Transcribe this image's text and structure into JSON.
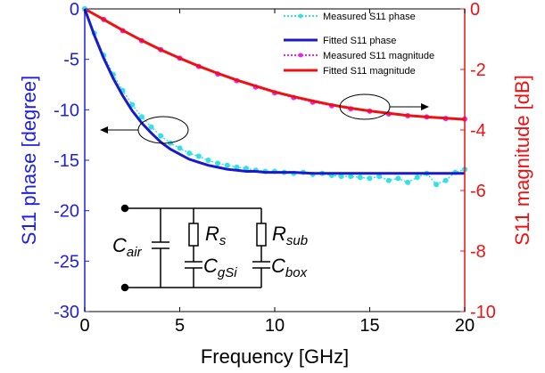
{
  "chart_data": {
    "type": "line",
    "xlabel": "Frequency [GHz]",
    "ylabel_left": "S11 phase [degree]",
    "ylabel_right": "S11 magnitude [dB]",
    "xlim": [
      0,
      20
    ],
    "ylim_left": [
      -30,
      0
    ],
    "ylim_right": [
      -10,
      0
    ],
    "x_ticks": [
      "0",
      "5",
      "10",
      "15",
      "20"
    ],
    "y_left_ticks": [
      "0",
      "-5",
      "-10",
      "-15",
      "-20",
      "-25",
      "-30"
    ],
    "y_right_ticks": [
      "0",
      "-2",
      "-4",
      "-6",
      "-8",
      "-10"
    ],
    "colors": {
      "measured_phase": "#33e0e6",
      "fitted_phase": "#1a1acc",
      "measured_mag": "#ee22ee",
      "fitted_mag": "#ee1111",
      "left_axis": "#1f1fe0",
      "right_axis": "#ee1111"
    },
    "legend": {
      "position": "top-right",
      "entries": [
        "Measured S11 phase",
        "Fitted S11 phase",
        "Measured S11 magnitude",
        "Fitted S11 magnitude"
      ]
    },
    "series": [
      {
        "name": "Measured S11 phase",
        "axis": "left",
        "style": "dotted-marker",
        "x": [
          0,
          0.5,
          1,
          1.5,
          2,
          2.5,
          3,
          3.5,
          4,
          4.5,
          5,
          5.5,
          6,
          6.5,
          7,
          7.5,
          8,
          8.5,
          9,
          9.5,
          10,
          10.5,
          11,
          11.5,
          12,
          12.5,
          13,
          13.5,
          14,
          14.5,
          15,
          15.5,
          16,
          16.5,
          17,
          17.5,
          18,
          18.5,
          19,
          19.5,
          20
        ],
        "y": [
          0,
          -2.4,
          -4.6,
          -6.5,
          -8.1,
          -9.5,
          -10.7,
          -11.7,
          -12.6,
          -13.3,
          -13.8,
          -14.3,
          -14.6,
          -15.0,
          -15.3,
          -15.5,
          -15.7,
          -15.8,
          -16.0,
          -16.1,
          -16.1,
          -16.2,
          -16.3,
          -16.2,
          -16.4,
          -16.3,
          -16.5,
          -16.6,
          -16.6,
          -16.7,
          -16.8,
          -16.6,
          -17.0,
          -16.8,
          -17.2,
          -16.7,
          -16.3,
          -17.4,
          -17.0,
          -16.2,
          -15.9
        ]
      },
      {
        "name": "Fitted S11 phase",
        "axis": "left",
        "style": "solid",
        "x": [
          0,
          0.5,
          1,
          1.5,
          2,
          2.5,
          3,
          3.5,
          4,
          4.5,
          5,
          5.5,
          6,
          6.5,
          7,
          7.5,
          8,
          8.5,
          9,
          9.5,
          10,
          11,
          12,
          13,
          14,
          15,
          16,
          17,
          18,
          19,
          20
        ],
        "y": [
          0,
          -2.6,
          -4.9,
          -6.9,
          -8.6,
          -10.1,
          -11.3,
          -12.3,
          -13.2,
          -13.9,
          -14.4,
          -14.9,
          -15.2,
          -15.5,
          -15.7,
          -15.9,
          -16.0,
          -16.1,
          -16.1,
          -16.2,
          -16.2,
          -16.2,
          -16.3,
          -16.3,
          -16.3,
          -16.3,
          -16.3,
          -16.3,
          -16.3,
          -16.3,
          -16.3
        ]
      },
      {
        "name": "Measured S11 magnitude",
        "axis": "right",
        "style": "dotted-marker",
        "x": [
          0,
          1,
          2,
          3,
          4,
          5,
          6,
          7,
          8,
          9,
          10,
          11,
          12,
          13,
          14,
          15,
          16,
          17,
          18,
          19,
          20
        ],
        "y": [
          0,
          -0.35,
          -0.72,
          -1.05,
          -1.35,
          -1.63,
          -1.9,
          -2.15,
          -2.37,
          -2.58,
          -2.77,
          -2.93,
          -3.08,
          -3.2,
          -3.3,
          -3.38,
          -3.47,
          -3.53,
          -3.57,
          -3.62,
          -3.64
        ]
      },
      {
        "name": "Fitted S11 magnitude",
        "axis": "right",
        "style": "solid",
        "x": [
          0,
          1,
          2,
          3,
          4,
          5,
          6,
          7,
          8,
          9,
          10,
          11,
          12,
          13,
          14,
          15,
          16,
          17,
          18,
          19,
          20
        ],
        "y": [
          0,
          -0.35,
          -0.71,
          -1.04,
          -1.35,
          -1.63,
          -1.89,
          -2.13,
          -2.35,
          -2.55,
          -2.74,
          -2.9,
          -3.04,
          -3.17,
          -3.28,
          -3.37,
          -3.45,
          -3.52,
          -3.57,
          -3.61,
          -3.65
        ]
      }
    ],
    "circuit": {
      "labels": {
        "c_air": [
          "C",
          "air"
        ],
        "r_s": [
          "R",
          "s"
        ],
        "c_gsi": [
          "C",
          "gSi"
        ],
        "r_sub": [
          "R",
          "sub"
        ],
        "c_box": [
          "C",
          "box"
        ]
      }
    }
  }
}
